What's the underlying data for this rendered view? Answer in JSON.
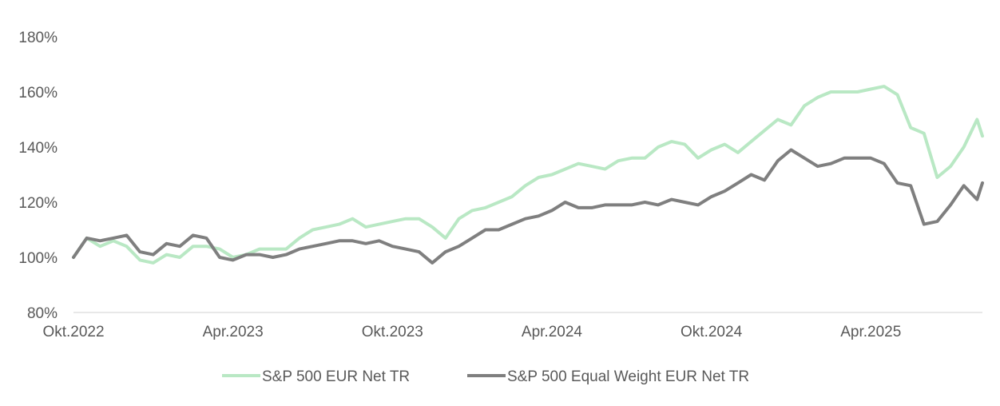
{
  "chart_data": {
    "type": "line",
    "title": "",
    "xlabel": "",
    "ylabel": "",
    "x_ticks": [
      "Okt.2022",
      "Apr.2023",
      "Okt.2023",
      "Apr.2024",
      "Okt.2024",
      "Apr.2025"
    ],
    "y_ticks": [
      "80%",
      "100%",
      "120%",
      "140%",
      "160%",
      "180%"
    ],
    "ylim": [
      80,
      180
    ],
    "x_unit": "month index from Okt.2022",
    "xlim": [
      0,
      34.2
    ],
    "grid": false,
    "legend_position": "bottom",
    "series": [
      {
        "name": "S&P 500 EUR Net TR",
        "color": "#b9e8c4",
        "x": [
          0,
          0.5,
          1,
          1.5,
          2,
          2.5,
          3,
          3.5,
          4,
          4.5,
          5,
          5.5,
          6,
          6.5,
          7,
          7.5,
          8,
          8.5,
          9,
          9.5,
          10,
          10.5,
          11,
          11.5,
          12,
          12.5,
          13,
          13.5,
          14,
          14.5,
          15,
          15.5,
          16,
          16.5,
          17,
          17.5,
          18,
          18.5,
          19,
          19.5,
          20,
          20.5,
          21,
          21.5,
          22,
          22.5,
          23,
          23.5,
          24,
          24.5,
          25,
          25.5,
          26,
          26.5,
          27,
          27.5,
          28,
          28.5,
          29,
          29.5,
          30,
          30.5,
          31,
          31.5,
          32,
          32.5,
          33,
          33.5,
          34,
          34.2
        ],
        "values": [
          100,
          107,
          104,
          106,
          104,
          99,
          98,
          101,
          100,
          104,
          104,
          103,
          100,
          101,
          103,
          103,
          103,
          107,
          110,
          111,
          112,
          114,
          111,
          112,
          113,
          114,
          114,
          111,
          107,
          114,
          117,
          118,
          120,
          122,
          126,
          129,
          130,
          132,
          134,
          133,
          132,
          135,
          136,
          136,
          140,
          142,
          141,
          136,
          139,
          141,
          138,
          142,
          146,
          150,
          148,
          155,
          158,
          160,
          160,
          160,
          161,
          162,
          159,
          147,
          145,
          129,
          133,
          140,
          150,
          144
        ]
      },
      {
        "name": "S&P 500 Equal Weight EUR Net TR",
        "color": "#7f7f7f",
        "x": [
          0,
          0.5,
          1,
          1.5,
          2,
          2.5,
          3,
          3.5,
          4,
          4.5,
          5,
          5.5,
          6,
          6.5,
          7,
          7.5,
          8,
          8.5,
          9,
          9.5,
          10,
          10.5,
          11,
          11.5,
          12,
          12.5,
          13,
          13.5,
          14,
          14.5,
          15,
          15.5,
          16,
          16.5,
          17,
          17.5,
          18,
          18.5,
          19,
          19.5,
          20,
          20.5,
          21,
          21.5,
          22,
          22.5,
          23,
          23.5,
          24,
          24.5,
          25,
          25.5,
          26,
          26.5,
          27,
          27.5,
          28,
          28.5,
          29,
          29.5,
          30,
          30.5,
          31,
          31.5,
          32,
          32.5,
          33,
          33.5,
          34,
          34.2
        ],
        "values": [
          100,
          107,
          106,
          107,
          108,
          102,
          101,
          105,
          104,
          108,
          107,
          100,
          99,
          101,
          101,
          100,
          101,
          103,
          104,
          105,
          106,
          106,
          105,
          106,
          104,
          103,
          102,
          98,
          102,
          104,
          107,
          110,
          110,
          112,
          114,
          115,
          117,
          120,
          118,
          118,
          119,
          119,
          119,
          120,
          119,
          121,
          120,
          119,
          122,
          124,
          127,
          130,
          128,
          135,
          139,
          136,
          133,
          134,
          136,
          136,
          136,
          134,
          127,
          126,
          112,
          113,
          119,
          126,
          121,
          127
        ]
      }
    ]
  }
}
